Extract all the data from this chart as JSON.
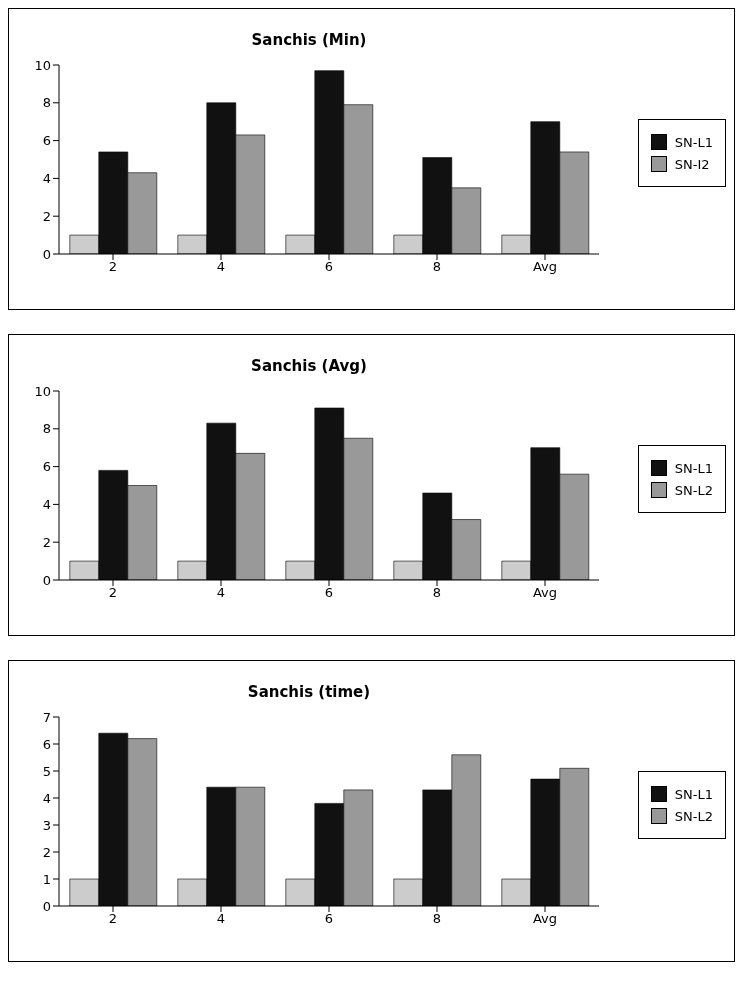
{
  "chart_data": [
    {
      "type": "bar",
      "title": "Sanchis (Min)",
      "categories": [
        "2",
        "4",
        "6",
        "8",
        "Avg"
      ],
      "series": [
        {
          "color": "#cccccc",
          "values": [
            1,
            1,
            1,
            1,
            1
          ]
        },
        {
          "name": "SN-L1",
          "color": "#111111",
          "values": [
            5.4,
            8.0,
            9.7,
            5.1,
            7.0
          ]
        },
        {
          "name": "SN-I2",
          "color": "#999999",
          "values": [
            4.3,
            6.3,
            7.9,
            3.5,
            5.4
          ]
        }
      ],
      "ylim": [
        0,
        10
      ],
      "yticks": [
        0,
        2,
        4,
        6,
        8,
        10
      ],
      "grid": false,
      "legend": "right"
    },
    {
      "type": "bar",
      "title": "Sanchis (Avg)",
      "categories": [
        "2",
        "4",
        "6",
        "8",
        "Avg"
      ],
      "series": [
        {
          "color": "#cccccc",
          "values": [
            1,
            1,
            1,
            1,
            1
          ]
        },
        {
          "name": "SN-L1",
          "color": "#111111",
          "values": [
            5.8,
            8.3,
            9.1,
            4.6,
            7.0
          ]
        },
        {
          "name": "SN-L2",
          "color": "#999999",
          "values": [
            5.0,
            6.7,
            7.5,
            3.2,
            5.6
          ]
        }
      ],
      "ylim": [
        0,
        10
      ],
      "yticks": [
        0,
        2,
        4,
        6,
        8,
        10
      ],
      "grid": false,
      "legend": "right"
    },
    {
      "type": "bar",
      "title": "Sanchis (time)",
      "categories": [
        "2",
        "4",
        "6",
        "8",
        "Avg"
      ],
      "series": [
        {
          "color": "#cccccc",
          "values": [
            1,
            1,
            1,
            1,
            1
          ]
        },
        {
          "name": "SN-L1",
          "color": "#111111",
          "values": [
            6.4,
            4.4,
            3.8,
            4.3,
            4.7
          ]
        },
        {
          "name": "SN-L2",
          "color": "#999999",
          "values": [
            6.2,
            4.4,
            4.3,
            5.6,
            5.1
          ]
        }
      ],
      "ylim": [
        0,
        7
      ],
      "yticks": [
        0,
        1,
        2,
        3,
        4,
        5,
        6,
        7
      ],
      "grid": false,
      "legend": "right"
    }
  ]
}
